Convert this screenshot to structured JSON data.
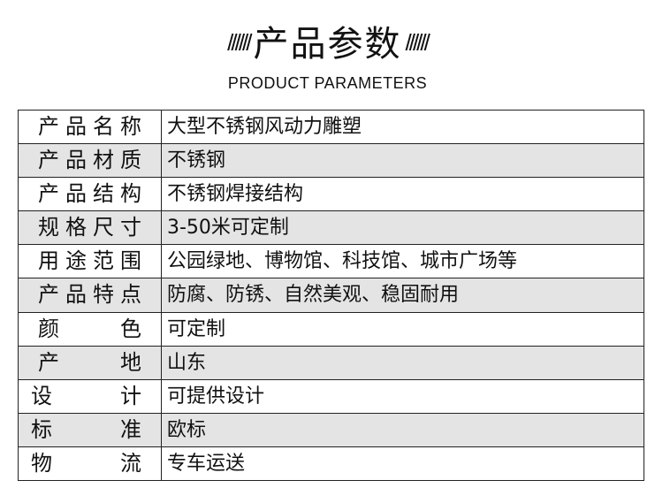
{
  "header": {
    "title": "产品参数",
    "decoration": "//////",
    "subtitle": "PRODUCT PARAMETERS"
  },
  "table": {
    "rows": [
      [
        "产品名称",
        "大型不锈钢风动力雕塑"
      ],
      [
        "产品材质",
        "不锈钢"
      ],
      [
        "产品结构",
        "不锈钢焊接结构"
      ],
      [
        "规格尺寸",
        "3-50米可定制"
      ],
      [
        "用途范围",
        "公园绿地、博物馆、科技馆、城市广场等"
      ],
      [
        "产品特点",
        "防腐、防锈、自然美观、稳固耐用"
      ],
      [
        "颜色",
        "可定制"
      ],
      [
        "产地",
        "山东"
      ],
      [
        "设计",
        "可提供设计"
      ],
      [
        "标准",
        "欧标"
      ],
      [
        "物流",
        "专车运送"
      ]
    ]
  }
}
